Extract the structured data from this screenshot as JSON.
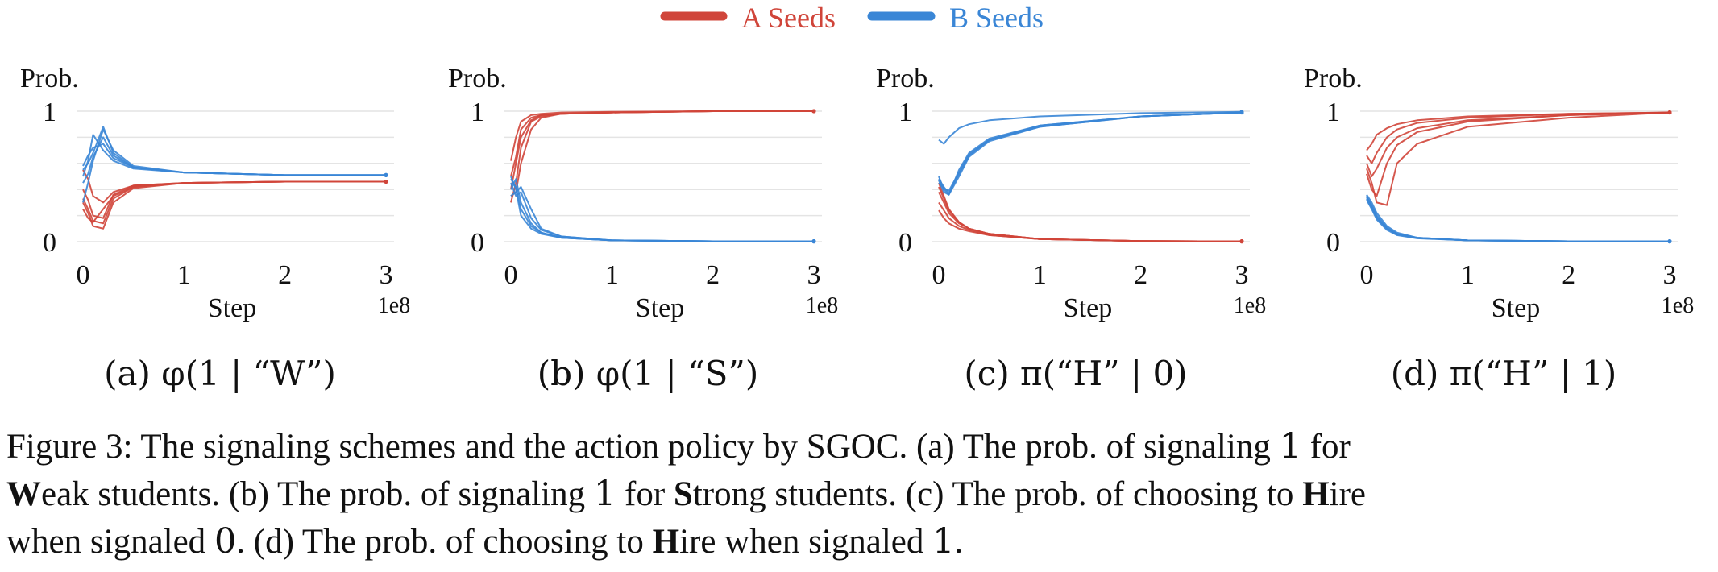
{
  "legend": {
    "position": "top-center",
    "items": [
      {
        "label": "A Seeds",
        "color": "#d0453a"
      },
      {
        "label": "B Seeds",
        "color": "#3a86d6"
      }
    ]
  },
  "chart_data": [
    {
      "type": "line",
      "ylabel": "Prob.",
      "xlabel": "Step",
      "x_multiplier": "1e8",
      "xlim": [
        0,
        3
      ],
      "ylim": [
        0,
        1
      ],
      "xticks": [
        "0",
        "1",
        "2",
        "3"
      ],
      "yticks": [
        "0",
        "1"
      ],
      "grid": true,
      "subcaption": "(a) φ(1 | “W”)",
      "series": [
        {
          "group": "A Seeds",
          "x": [
            0,
            0.05,
            0.1,
            0.2,
            0.3,
            0.5,
            1,
            2,
            3
          ],
          "y": [
            0.25,
            0.18,
            0.15,
            0.25,
            0.35,
            0.42,
            0.45,
            0.46,
            0.46
          ]
        },
        {
          "group": "A Seeds",
          "x": [
            0,
            0.05,
            0.1,
            0.2,
            0.3,
            0.5,
            1,
            2,
            3
          ],
          "y": [
            0.3,
            0.22,
            0.12,
            0.1,
            0.3,
            0.41,
            0.45,
            0.46,
            0.46
          ]
        },
        {
          "group": "A Seeds",
          "x": [
            0,
            0.05,
            0.1,
            0.2,
            0.3,
            0.5,
            1,
            2,
            3
          ],
          "y": [
            0.4,
            0.32,
            0.2,
            0.18,
            0.36,
            0.43,
            0.45,
            0.46,
            0.46
          ]
        },
        {
          "group": "A Seeds",
          "x": [
            0,
            0.05,
            0.1,
            0.2,
            0.3,
            0.5,
            1,
            2,
            3
          ],
          "y": [
            0.33,
            0.25,
            0.16,
            0.14,
            0.33,
            0.42,
            0.45,
            0.46,
            0.46
          ]
        },
        {
          "group": "A Seeds",
          "x": [
            0,
            0.05,
            0.1,
            0.2,
            0.3,
            0.5,
            1,
            2,
            3
          ],
          "y": [
            0.55,
            0.48,
            0.35,
            0.3,
            0.38,
            0.43,
            0.45,
            0.46,
            0.46
          ]
        },
        {
          "group": "B Seeds",
          "x": [
            0,
            0.05,
            0.1,
            0.2,
            0.3,
            0.5,
            1,
            2,
            3
          ],
          "y": [
            0.5,
            0.62,
            0.82,
            0.7,
            0.62,
            0.56,
            0.53,
            0.51,
            0.51
          ]
        },
        {
          "group": "B Seeds",
          "x": [
            0,
            0.05,
            0.1,
            0.2,
            0.3,
            0.5,
            1,
            2,
            3
          ],
          "y": [
            0.3,
            0.45,
            0.62,
            0.86,
            0.7,
            0.58,
            0.53,
            0.51,
            0.51
          ]
        },
        {
          "group": "B Seeds",
          "x": [
            0,
            0.05,
            0.1,
            0.2,
            0.3,
            0.5,
            1,
            2,
            3
          ],
          "y": [
            0.55,
            0.6,
            0.68,
            0.88,
            0.68,
            0.57,
            0.53,
            0.51,
            0.51
          ]
        },
        {
          "group": "B Seeds",
          "x": [
            0,
            0.05,
            0.1,
            0.2,
            0.3,
            0.5,
            1,
            2,
            3
          ],
          "y": [
            0.45,
            0.52,
            0.65,
            0.8,
            0.66,
            0.57,
            0.53,
            0.51,
            0.51
          ]
        },
        {
          "group": "B Seeds",
          "x": [
            0,
            0.05,
            0.1,
            0.2,
            0.3,
            0.5,
            1,
            2,
            3
          ],
          "y": [
            0.58,
            0.66,
            0.72,
            0.75,
            0.64,
            0.57,
            0.53,
            0.51,
            0.51
          ]
        }
      ]
    },
    {
      "type": "line",
      "ylabel": "Prob.",
      "xlabel": "Step",
      "x_multiplier": "1e8",
      "xlim": [
        0,
        3
      ],
      "ylim": [
        0,
        1
      ],
      "xticks": [
        "0",
        "1",
        "2",
        "3"
      ],
      "yticks": [
        "0",
        "1"
      ],
      "grid": true,
      "subcaption": "(b) φ(1 | “S”)",
      "series": [
        {
          "group": "A Seeds",
          "x": [
            0,
            0.05,
            0.1,
            0.2,
            0.3,
            0.5,
            1,
            2,
            3
          ],
          "y": [
            0.62,
            0.8,
            0.92,
            0.97,
            0.98,
            0.99,
            0.995,
            1,
            1
          ]
        },
        {
          "group": "A Seeds",
          "x": [
            0,
            0.05,
            0.1,
            0.2,
            0.3,
            0.5,
            1,
            2,
            3
          ],
          "y": [
            0.4,
            0.6,
            0.8,
            0.93,
            0.97,
            0.98,
            0.99,
            1,
            1
          ]
        },
        {
          "group": "A Seeds",
          "x": [
            0,
            0.05,
            0.1,
            0.2,
            0.3,
            0.5,
            1,
            2,
            3
          ],
          "y": [
            0.3,
            0.45,
            0.72,
            0.92,
            0.96,
            0.98,
            0.99,
            1,
            1
          ]
        },
        {
          "group": "A Seeds",
          "x": [
            0,
            0.05,
            0.1,
            0.2,
            0.3,
            0.5,
            1,
            2,
            3
          ],
          "y": [
            0.35,
            0.38,
            0.6,
            0.86,
            0.95,
            0.98,
            0.99,
            1,
            1
          ]
        },
        {
          "group": "A Seeds",
          "x": [
            0,
            0.05,
            0.1,
            0.2,
            0.3,
            0.5,
            1,
            2,
            3
          ],
          "y": [
            0.5,
            0.65,
            0.86,
            0.95,
            0.97,
            0.98,
            0.99,
            1,
            1
          ]
        },
        {
          "group": "B Seeds",
          "x": [
            0,
            0.05,
            0.1,
            0.2,
            0.3,
            0.5,
            1,
            2,
            3
          ],
          "y": [
            0.5,
            0.4,
            0.2,
            0.1,
            0.06,
            0.03,
            0.01,
            0.003,
            0.002
          ]
        },
        {
          "group": "B Seeds",
          "x": [
            0,
            0.05,
            0.1,
            0.2,
            0.3,
            0.5,
            1,
            2,
            3
          ],
          "y": [
            0.4,
            0.48,
            0.3,
            0.14,
            0.07,
            0.03,
            0.01,
            0.003,
            0.002
          ]
        },
        {
          "group": "B Seeds",
          "x": [
            0,
            0.05,
            0.1,
            0.2,
            0.3,
            0.5,
            1,
            2,
            3
          ],
          "y": [
            0.45,
            0.35,
            0.38,
            0.18,
            0.09,
            0.04,
            0.01,
            0.003,
            0.002
          ]
        },
        {
          "group": "B Seeds",
          "x": [
            0,
            0.05,
            0.1,
            0.2,
            0.3,
            0.5,
            1,
            2,
            3
          ],
          "y": [
            0.35,
            0.38,
            0.42,
            0.25,
            0.1,
            0.04,
            0.01,
            0.003,
            0.002
          ]
        },
        {
          "group": "B Seeds",
          "x": [
            0,
            0.05,
            0.1,
            0.2,
            0.3,
            0.5,
            1,
            2,
            3
          ],
          "y": [
            0.48,
            0.42,
            0.25,
            0.12,
            0.07,
            0.03,
            0.01,
            0.003,
            0.002
          ]
        }
      ]
    },
    {
      "type": "line",
      "ylabel": "Prob.",
      "xlabel": "Step",
      "x_multiplier": "1e8",
      "xlim": [
        0,
        3
      ],
      "ylim": [
        0,
        1
      ],
      "xticks": [
        "0",
        "1",
        "2",
        "3"
      ],
      "yticks": [
        "0",
        "1"
      ],
      "grid": true,
      "subcaption": "(c) π(“H” | 0)",
      "series": [
        {
          "group": "A Seeds",
          "x": [
            0,
            0.05,
            0.1,
            0.2,
            0.3,
            0.5,
            1,
            2,
            3
          ],
          "y": [
            0.45,
            0.35,
            0.25,
            0.15,
            0.1,
            0.06,
            0.02,
            0.005,
            0.002
          ]
        },
        {
          "group": "A Seeds",
          "x": [
            0,
            0.05,
            0.1,
            0.2,
            0.3,
            0.5,
            1,
            2,
            3
          ],
          "y": [
            0.38,
            0.3,
            0.22,
            0.14,
            0.1,
            0.06,
            0.02,
            0.005,
            0.002
          ]
        },
        {
          "group": "A Seeds",
          "x": [
            0,
            0.05,
            0.1,
            0.2,
            0.3,
            0.5,
            1,
            2,
            3
          ],
          "y": [
            0.3,
            0.24,
            0.18,
            0.12,
            0.09,
            0.05,
            0.02,
            0.005,
            0.002
          ]
        },
        {
          "group": "A Seeds",
          "x": [
            0,
            0.05,
            0.1,
            0.2,
            0.3,
            0.5,
            1,
            2,
            3
          ],
          "y": [
            0.24,
            0.18,
            0.14,
            0.1,
            0.08,
            0.05,
            0.02,
            0.005,
            0.002
          ]
        },
        {
          "group": "A Seeds",
          "x": [
            0,
            0.05,
            0.1,
            0.2,
            0.3,
            0.5,
            1,
            2,
            3
          ],
          "y": [
            0.42,
            0.33,
            0.24,
            0.15,
            0.1,
            0.06,
            0.02,
            0.005,
            0.002
          ]
        },
        {
          "group": "B Seeds",
          "x": [
            0,
            0.05,
            0.1,
            0.2,
            0.3,
            0.5,
            1,
            2,
            3
          ],
          "y": [
            0.78,
            0.75,
            0.8,
            0.87,
            0.9,
            0.93,
            0.96,
            0.985,
            0.995
          ]
        },
        {
          "group": "B Seeds",
          "x": [
            0,
            0.05,
            0.1,
            0.2,
            0.3,
            0.5,
            1,
            2,
            3
          ],
          "y": [
            0.5,
            0.4,
            0.36,
            0.55,
            0.68,
            0.79,
            0.89,
            0.96,
            0.99
          ]
        },
        {
          "group": "B Seeds",
          "x": [
            0,
            0.05,
            0.1,
            0.2,
            0.3,
            0.5,
            1,
            2,
            3
          ],
          "y": [
            0.47,
            0.38,
            0.36,
            0.5,
            0.65,
            0.77,
            0.88,
            0.96,
            0.99
          ]
        },
        {
          "group": "B Seeds",
          "x": [
            0,
            0.05,
            0.1,
            0.2,
            0.3,
            0.5,
            1,
            2,
            3
          ],
          "y": [
            0.45,
            0.41,
            0.39,
            0.53,
            0.67,
            0.78,
            0.89,
            0.96,
            0.99
          ]
        },
        {
          "group": "B Seeds",
          "x": [
            0,
            0.05,
            0.1,
            0.2,
            0.3,
            0.5,
            1,
            2,
            3
          ],
          "y": [
            0.48,
            0.42,
            0.37,
            0.52,
            0.66,
            0.78,
            0.88,
            0.96,
            0.99
          ]
        }
      ]
    },
    {
      "type": "line",
      "ylabel": "Prob.",
      "xlabel": "Step",
      "x_multiplier": "1e8",
      "xlim": [
        0,
        3
      ],
      "ylim": [
        0,
        1
      ],
      "xticks": [
        "0",
        "1",
        "2",
        "3"
      ],
      "yticks": [
        "0",
        "1"
      ],
      "grid": true,
      "subcaption": "(d) π(“H” | 1)",
      "series": [
        {
          "group": "A Seeds",
          "x": [
            0,
            0.05,
            0.1,
            0.2,
            0.3,
            0.5,
            1,
            2,
            3
          ],
          "y": [
            0.7,
            0.75,
            0.82,
            0.87,
            0.9,
            0.93,
            0.96,
            0.98,
            0.99
          ]
        },
        {
          "group": "A Seeds",
          "x": [
            0,
            0.05,
            0.1,
            0.2,
            0.3,
            0.5,
            1,
            2,
            3
          ],
          "y": [
            0.6,
            0.5,
            0.56,
            0.72,
            0.8,
            0.87,
            0.93,
            0.97,
            0.99
          ]
        },
        {
          "group": "A Seeds",
          "x": [
            0,
            0.05,
            0.1,
            0.2,
            0.3,
            0.5,
            1,
            2,
            3
          ],
          "y": [
            0.52,
            0.4,
            0.35,
            0.6,
            0.74,
            0.84,
            0.92,
            0.97,
            0.99
          ]
        },
        {
          "group": "A Seeds",
          "x": [
            0,
            0.05,
            0.1,
            0.2,
            0.3,
            0.5,
            1,
            2,
            3
          ],
          "y": [
            0.56,
            0.45,
            0.3,
            0.28,
            0.6,
            0.75,
            0.88,
            0.95,
            0.99
          ]
        },
        {
          "group": "A Seeds",
          "x": [
            0,
            0.05,
            0.1,
            0.2,
            0.3,
            0.5,
            1,
            2,
            3
          ],
          "y": [
            0.66,
            0.6,
            0.68,
            0.8,
            0.86,
            0.91,
            0.95,
            0.98,
            0.99
          ]
        },
        {
          "group": "B Seeds",
          "x": [
            0,
            0.05,
            0.1,
            0.2,
            0.3,
            0.5,
            1,
            2,
            3
          ],
          "y": [
            0.36,
            0.3,
            0.22,
            0.12,
            0.07,
            0.03,
            0.01,
            0.003,
            0.002
          ]
        },
        {
          "group": "B Seeds",
          "x": [
            0,
            0.05,
            0.1,
            0.2,
            0.3,
            0.5,
            1,
            2,
            3
          ],
          "y": [
            0.34,
            0.28,
            0.2,
            0.11,
            0.06,
            0.03,
            0.01,
            0.003,
            0.002
          ]
        },
        {
          "group": "B Seeds",
          "x": [
            0,
            0.05,
            0.1,
            0.2,
            0.3,
            0.5,
            1,
            2,
            3
          ],
          "y": [
            0.32,
            0.25,
            0.17,
            0.09,
            0.05,
            0.025,
            0.01,
            0.003,
            0.002
          ]
        },
        {
          "group": "B Seeds",
          "x": [
            0,
            0.05,
            0.1,
            0.2,
            0.3,
            0.5,
            1,
            2,
            3
          ],
          "y": [
            0.35,
            0.27,
            0.19,
            0.1,
            0.06,
            0.03,
            0.01,
            0.003,
            0.002
          ]
        },
        {
          "group": "B Seeds",
          "x": [
            0,
            0.05,
            0.1,
            0.2,
            0.3,
            0.5,
            1,
            2,
            3
          ],
          "y": [
            0.33,
            0.26,
            0.18,
            0.1,
            0.055,
            0.028,
            0.01,
            0.003,
            0.002
          ]
        }
      ]
    }
  ],
  "caption": {
    "prefix": "Figure 3: The signaling schemes and the action policy by SGOC. (a) The prob. of signaling ",
    "n1": "1",
    "p2": " for",
    "w_bold": "W",
    "p3": "eak students. (b) The prob. of signaling ",
    "n2": "1",
    "p4": " for ",
    "s_bold": "S",
    "p5": "trong students. (c) The prob. of choosing to ",
    "h1_bold": "H",
    "p6": "ire",
    "p7": "when signaled ",
    "n3": "0",
    "p8": ". (d) The prob. of choosing to ",
    "h2_bold": "H",
    "p9": "ire when signaled ",
    "n4": "1",
    "p10": "."
  }
}
